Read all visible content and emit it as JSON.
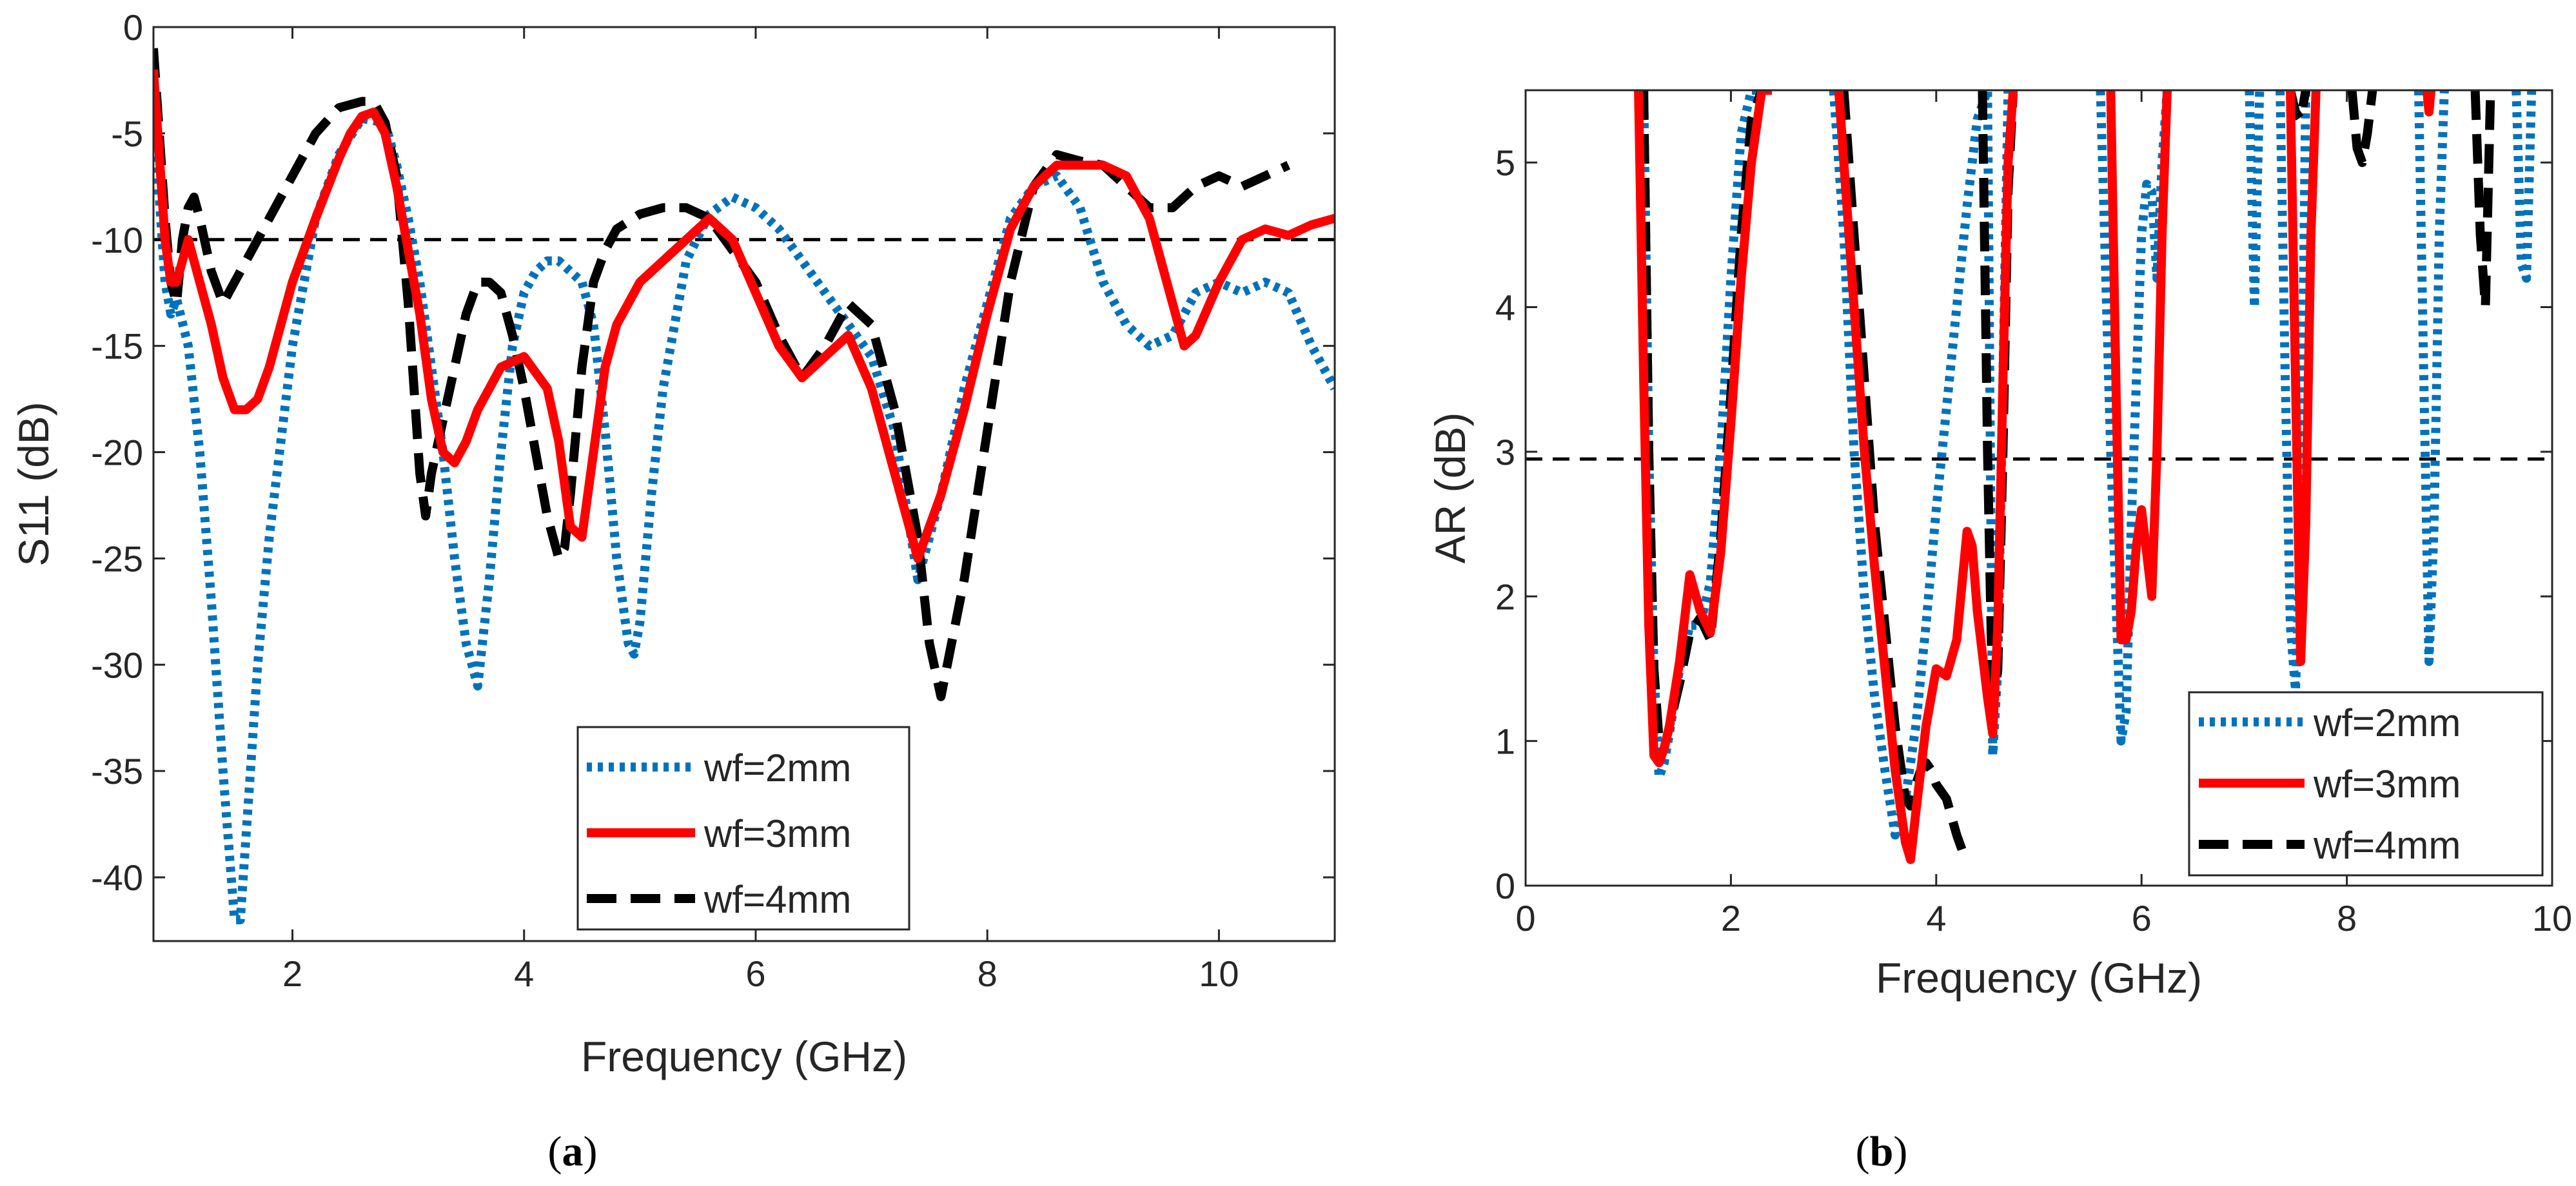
{
  "colors": {
    "wf2": "#0072BD",
    "wf3": "#FF0000",
    "wf4": "#000000",
    "axis": "#262626",
    "reference_line": "#000000"
  },
  "chart_data": [
    {
      "type": "line",
      "panel": "a",
      "caption_label": "a",
      "xlabel": "Frequency (GHz)",
      "ylabel": "S11 (dB)",
      "xlim": [
        0.8,
        11
      ],
      "ylim": [
        -43,
        0
      ],
      "xticks": [
        2,
        4,
        6,
        8,
        10
      ],
      "yticks": [
        0,
        -5,
        -10,
        -15,
        -20,
        -25,
        -30,
        -35,
        -40
      ],
      "grid": false,
      "legend_position": "bottom-center",
      "reference_line": -10,
      "series": [
        {
          "name": "wf=2mm",
          "style": "dotted",
          "x": [
            0.8,
            0.85,
            0.9,
            0.95,
            1.0,
            1.1,
            1.2,
            1.3,
            1.4,
            1.5,
            1.55,
            1.6,
            1.7,
            1.8,
            2.0,
            2.2,
            2.4,
            2.6,
            2.8,
            2.9,
            3.0,
            3.1,
            3.2,
            3.3,
            3.4,
            3.5,
            3.6,
            3.7,
            3.8,
            3.9,
            4.0,
            4.1,
            4.2,
            4.3,
            4.4,
            4.5,
            4.6,
            4.7,
            4.8,
            4.9,
            4.95,
            5.0,
            5.1,
            5.2,
            5.4,
            5.6,
            5.8,
            6.0,
            6.2,
            6.4,
            6.6,
            6.8,
            7.0,
            7.2,
            7.4,
            7.6,
            7.8,
            8.0,
            8.2,
            8.4,
            8.6,
            8.8,
            9.0,
            9.2,
            9.4,
            9.6,
            9.8,
            10.0,
            10.2,
            10.4,
            10.6,
            10.8,
            11.0
          ],
          "y": [
            -3,
            -8,
            -12,
            -13.5,
            -12.8,
            -15,
            -20,
            -27,
            -35,
            -42,
            -42,
            -38,
            -30,
            -24,
            -15,
            -9,
            -6,
            -4.3,
            -4.5,
            -6.5,
            -9,
            -12,
            -16,
            -20,
            -25,
            -29,
            -31,
            -26,
            -20,
            -15,
            -12.5,
            -11.5,
            -11,
            -11,
            -11.5,
            -12,
            -14,
            -19,
            -25,
            -29,
            -29.5,
            -28,
            -22,
            -17,
            -11,
            -8.8,
            -8,
            -8.5,
            -9.5,
            -11,
            -12.5,
            -14,
            -15.5,
            -19,
            -26,
            -22,
            -17,
            -13,
            -9,
            -7.5,
            -7,
            -8.5,
            -12,
            -14,
            -15,
            -14.5,
            -12.5,
            -12,
            -12.5,
            -12,
            -12.5,
            -15,
            -17
          ]
        },
        {
          "name": "wf=3mm",
          "style": "solid",
          "x": [
            0.8,
            0.85,
            0.9,
            0.95,
            1.0,
            1.05,
            1.1,
            1.2,
            1.3,
            1.4,
            1.5,
            1.6,
            1.7,
            1.8,
            2.0,
            2.2,
            2.4,
            2.5,
            2.6,
            2.7,
            2.8,
            2.9,
            3.0,
            3.1,
            3.2,
            3.3,
            3.4,
            3.5,
            3.6,
            3.7,
            3.8,
            4.0,
            4.2,
            4.3,
            4.4,
            4.5,
            4.6,
            4.7,
            4.8,
            5.0,
            5.2,
            5.4,
            5.6,
            5.8,
            6.0,
            6.2,
            6.4,
            6.6,
            6.8,
            7.0,
            7.2,
            7.4,
            7.6,
            7.8,
            8.0,
            8.2,
            8.4,
            8.6,
            8.8,
            9.0,
            9.2,
            9.4,
            9.6,
            9.7,
            9.8,
            10.0,
            10.2,
            10.4,
            10.6,
            10.8,
            11.0
          ],
          "y": [
            -2,
            -6,
            -10,
            -12,
            -12,
            -11,
            -10,
            -12,
            -14,
            -16.5,
            -18,
            -18,
            -17.5,
            -16,
            -12,
            -9,
            -6.2,
            -5,
            -4.2,
            -4,
            -5,
            -7.5,
            -10.5,
            -13.5,
            -17.5,
            -20,
            -20.5,
            -19.5,
            -18,
            -17,
            -16,
            -15.5,
            -17,
            -19.5,
            -23.5,
            -24,
            -20,
            -16,
            -14,
            -12,
            -11,
            -10,
            -9,
            -10,
            -12.5,
            -15,
            -16.5,
            -15.5,
            -14.5,
            -17,
            -21,
            -25,
            -22,
            -18,
            -13.5,
            -9.5,
            -7.5,
            -6.5,
            -6.5,
            -6.5,
            -7,
            -9,
            -13,
            -15,
            -14.5,
            -12,
            -10,
            -9.5,
            -9.8,
            -9.3,
            -9
          ]
        },
        {
          "name": "wf=4mm",
          "style": "dashed",
          "x": [
            0.8,
            0.85,
            0.9,
            0.95,
            1.0,
            1.05,
            1.1,
            1.15,
            1.2,
            1.3,
            1.4,
            1.5,
            1.6,
            1.8,
            2.0,
            2.2,
            2.4,
            2.6,
            2.7,
            2.8,
            2.9,
            3.0,
            3.1,
            3.15,
            3.2,
            3.3,
            3.4,
            3.5,
            3.6,
            3.7,
            3.8,
            3.9,
            4.0,
            4.1,
            4.2,
            4.3,
            4.35,
            4.4,
            4.5,
            4.6,
            4.7,
            4.8,
            5.0,
            5.2,
            5.4,
            5.6,
            5.8,
            6.0,
            6.2,
            6.4,
            6.6,
            6.8,
            7.0,
            7.2,
            7.4,
            7.5,
            7.6,
            7.8,
            8.0,
            8.2,
            8.4,
            8.6,
            8.8,
            9.0,
            9.2,
            9.4,
            9.6,
            9.8,
            10.0,
            10.2,
            10.4,
            10.6
          ],
          "y": [
            -1,
            -5,
            -9,
            -12,
            -13,
            -10,
            -8.5,
            -8,
            -9,
            -11.5,
            -13,
            -12,
            -11,
            -9,
            -7,
            -5,
            -3.8,
            -3.5,
            -3.5,
            -4.5,
            -7,
            -13,
            -21,
            -23,
            -21,
            -18.5,
            -16,
            -13.5,
            -12,
            -12,
            -12.5,
            -14.5,
            -17,
            -20,
            -23,
            -25,
            -24.5,
            -22,
            -16,
            -12,
            -10.5,
            -9.5,
            -8.8,
            -8.5,
            -8.5,
            -9,
            -10.5,
            -12,
            -14.5,
            -16.5,
            -15,
            -13,
            -14,
            -18,
            -24,
            -29,
            -31.5,
            -26,
            -19,
            -12,
            -7.5,
            -6,
            -6.3,
            -6.5,
            -7.5,
            -8.5,
            -8.5,
            -7.5,
            -7,
            -7.5,
            -7,
            -6.5
          ]
        }
      ],
      "legend": [
        "wf=2mm",
        "wf=3mm",
        "wf=4mm"
      ]
    },
    {
      "type": "line",
      "panel": "b",
      "caption_label": "b",
      "xlabel": "Frequency (GHz)",
      "ylabel": "AR (dB)",
      "xlim": [
        0,
        10
      ],
      "ylim": [
        0,
        5.5
      ],
      "xticks": [
        0,
        2,
        4,
        6,
        8,
        10
      ],
      "yticks": [
        0,
        1,
        2,
        3,
        4,
        5
      ],
      "grid": false,
      "legend_position": "bottom-right",
      "reference_line": 2.95,
      "series": [
        {
          "name": "wf=2mm",
          "style": "dotted",
          "segments": [
            {
              "x": [
                1.15,
                1.2,
                1.25,
                1.3,
                1.35,
                1.4,
                1.5,
                1.6,
                1.7,
                1.8,
                1.9,
                2.0,
                2.1,
                2.2,
                2.3
              ],
              "y": [
                5.5,
                3,
                1.5,
                0.75,
                0.85,
                1.05,
                1.5,
                1.8,
                1.8,
                2.1,
                3,
                4.2,
                5.2,
                5.5,
                5.5
              ]
            },
            {
              "x": [
                3.0,
                3.1,
                3.2,
                3.3,
                3.4,
                3.5,
                3.6,
                3.7,
                3.8,
                3.9,
                4.0,
                4.1,
                4.2,
                4.3,
                4.4,
                4.5,
                4.55,
                4.6,
                4.65,
                4.7
              ],
              "y": [
                5.5,
                4.5,
                3,
                2,
                1.3,
                0.8,
                0.35,
                0.6,
                1.1,
                1.8,
                2.6,
                3.3,
                4,
                4.7,
                5.3,
                5.5,
                0.9,
                1.5,
                3.5,
                5.5
              ]
            },
            {
              "x": [
                5.6,
                5.7,
                5.8,
                5.85,
                5.9,
                6.0,
                6.05,
                6.1,
                6.15,
                6.2,
                6.25
              ],
              "y": [
                5.5,
                3,
                1,
                1.2,
                2.5,
                4.5,
                4.85,
                4.8,
                4.2,
                5,
                5.5
              ]
            },
            {
              "x": [
                7.05,
                7.1,
                7.15
              ],
              "y": [
                5.5,
                4,
                5.5
              ]
            },
            {
              "x": [
                7.35,
                7.4,
                7.45,
                7.5,
                7.55,
                7.6
              ],
              "y": [
                5.5,
                3.5,
                1.8,
                1.35,
                2.5,
                5.5
              ]
            },
            {
              "x": [
                8.7,
                8.75,
                8.8,
                8.85,
                8.9,
                8.95
              ],
              "y": [
                5.5,
                3.5,
                1.55,
                2.5,
                4.5,
                5.5
              ]
            },
            {
              "x": [
                9.65,
                9.7,
                9.75,
                9.8
              ],
              "y": [
                5.5,
                4.3,
                4.2,
                5.5
              ]
            }
          ]
        },
        {
          "name": "wf=3mm",
          "style": "solid",
          "segments": [
            {
              "x": [
                1.1,
                1.15,
                1.2,
                1.25,
                1.3,
                1.35,
                1.4,
                1.5,
                1.6,
                1.7,
                1.8,
                1.9,
                2.0,
                2.1,
                2.2,
                2.3,
                2.4
              ],
              "y": [
                5.5,
                3.5,
                1.8,
                0.9,
                0.85,
                0.95,
                1.1,
                1.55,
                2.15,
                1.9,
                1.75,
                2.3,
                3.2,
                4.2,
                5,
                5.5,
                5.5
              ]
            },
            {
              "x": [
                3.05,
                3.1,
                3.2,
                3.3,
                3.4,
                3.5,
                3.6,
                3.7,
                3.75,
                3.8,
                3.9,
                4.0,
                4.1,
                4.2,
                4.3,
                4.35,
                4.4,
                4.5,
                4.55,
                4.6,
                4.65,
                4.7,
                4.75
              ],
              "y": [
                5.5,
                5,
                4,
                3,
                2.2,
                1.5,
                0.8,
                0.3,
                0.18,
                0.5,
                1.1,
                1.5,
                1.45,
                1.7,
                2.45,
                2.35,
                1.9,
                1.3,
                1.05,
                1.8,
                3.5,
                5,
                5.5
              ]
            },
            {
              "x": [
                5.7,
                5.75,
                5.8,
                5.85,
                5.9,
                5.95,
                6.0,
                6.05,
                6.1,
                6.15,
                6.2,
                6.25
              ],
              "y": [
                5.5,
                3.5,
                1.7,
                1.7,
                1.9,
                2.35,
                2.6,
                2.3,
                2.0,
                3,
                4.5,
                5.5
              ]
            },
            {
              "x": [
                7.45,
                7.5,
                7.55,
                7.6,
                7.65,
                7.7
              ],
              "y": [
                5.5,
                3.5,
                1.55,
                2.5,
                4.5,
                5.5
              ]
            },
            {
              "x": [
                8.78,
                8.8,
                8.82
              ],
              "y": [
                5.5,
                5.35,
                5.5
              ]
            }
          ]
        },
        {
          "name": "wf=4mm",
          "style": "dashed",
          "segments": [
            {
              "x": [
                1.15,
                1.2,
                1.25,
                1.3,
                1.35,
                1.4,
                1.5,
                1.6,
                1.7,
                1.8,
                1.9,
                2.0,
                2.1,
                2.2,
                2.3
              ],
              "y": [
                5.5,
                3,
                1.5,
                1,
                0.95,
                1.1,
                1.4,
                1.75,
                1.85,
                1.7,
                2.4,
                3.4,
                4.5,
                5.3,
                5.5
              ]
            },
            {
              "x": [
                3.1,
                3.2,
                3.3,
                3.4,
                3.5,
                3.6,
                3.7,
                3.75,
                3.8,
                3.85,
                3.9,
                3.95,
                4.0,
                4.05,
                4.1,
                4.2,
                4.25
              ],
              "y": [
                5.5,
                4.5,
                3.5,
                2.5,
                1.8,
                1.1,
                0.6,
                0.55,
                0.7,
                0.8,
                0.85,
                0.8,
                0.7,
                0.65,
                0.6,
                0.35,
                0.25
              ]
            },
            {
              "x": [
                4.45,
                4.5,
                4.55,
                4.6,
                4.65,
                4.7,
                4.75
              ],
              "y": [
                5.5,
                3,
                1.2,
                1.5,
                3,
                4.8,
                5.5
              ]
            },
            {
              "x": [
                7.45,
                7.5,
                7.55,
                7.6
              ],
              "y": [
                5.5,
                5.35,
                5.3,
                5.5
              ]
            },
            {
              "x": [
                8.05,
                8.1,
                8.15,
                8.2,
                8.25
              ],
              "y": [
                5.5,
                5.1,
                5.0,
                5.2,
                5.5
              ]
            },
            {
              "x": [
                9.25,
                9.3,
                9.35,
                9.4
              ],
              "y": [
                5.5,
                4.5,
                4.0,
                5.5
              ]
            }
          ]
        }
      ],
      "legend": [
        "wf=2mm",
        "wf=3mm",
        "wf=4mm"
      ]
    }
  ]
}
